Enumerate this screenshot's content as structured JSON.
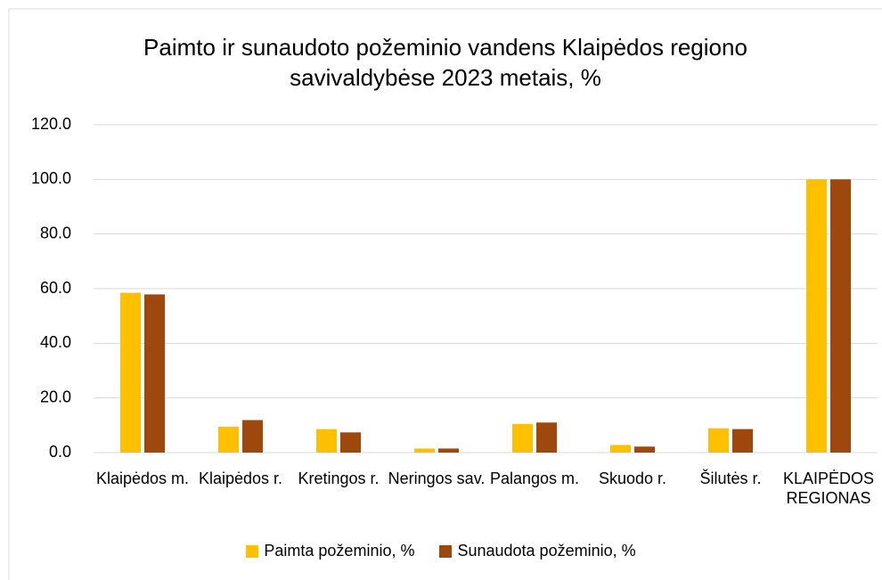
{
  "chart_data": {
    "type": "bar",
    "title": "Paimto ir sunaudoto požeminio vandens Klaipėdos regiono savivaldybėse 2023 metais, %",
    "categories": [
      "Klaipėdos m.",
      "Klaipėdos r.",
      "Kretingos r.",
      "Neringos sav.",
      "Palangos m.",
      "Skuodo r.",
      "Šilutės r.",
      "KLAIPĖDOS REGIONAS"
    ],
    "series": [
      {
        "name": "Paimta požeminio, %",
        "color": "#ffc000",
        "values": [
          58.5,
          9.5,
          8.6,
          1.5,
          10.5,
          2.8,
          8.9,
          100
        ]
      },
      {
        "name": "Sunaudota požeminio, %",
        "color": "#9e480e",
        "values": [
          57.9,
          11.9,
          7.4,
          1.5,
          11.0,
          2.2,
          8.6,
          100
        ]
      }
    ],
    "ylim": [
      0,
      120
    ],
    "yticks": [
      {
        "value": 0,
        "label": "0.0"
      },
      {
        "value": 20,
        "label": "20.0"
      },
      {
        "value": 40,
        "label": "40.0"
      },
      {
        "value": 60,
        "label": "60.0"
      },
      {
        "value": 80,
        "label": "80.0"
      },
      {
        "value": 100,
        "label": "100.0"
      },
      {
        "value": 120,
        "label": "120.0"
      }
    ],
    "grid": true,
    "legend": "bottom"
  }
}
